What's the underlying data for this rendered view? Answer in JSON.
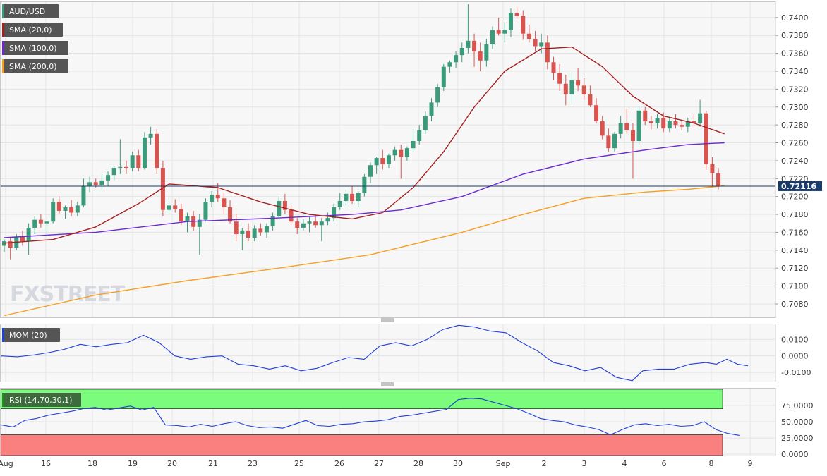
{
  "chart_data": {
    "type": "candlestick",
    "symbol": "AUD/USD",
    "watermark": "FXSTREET",
    "colors": {
      "up": "#3a9a7a",
      "down": "#d9534f",
      "sma20": "#a52020",
      "sma100": "#6a2ad0",
      "sma200": "#f5a020",
      "mom": "#2040d8",
      "rsi": "#2040d8",
      "rsi_overbought_zone": "#7cfc7c",
      "rsi_oversold_zone": "#fa8080",
      "last_price_line": "#1a3a6a"
    },
    "legend": [
      {
        "label": "AUD/USD",
        "color": "#3a9a7a"
      },
      {
        "label": "SMA (20,0)",
        "color": "#a52020"
      },
      {
        "label": "SMA (100,0)",
        "color": "#6a2ad0"
      },
      {
        "label": "SMA (200,0)",
        "color": "#f5a020"
      }
    ],
    "last_price": 0.72116,
    "last_price_label": "0.72116",
    "x_ticks": [
      "Aug",
      "16",
      "18",
      "19",
      "20",
      "21",
      "23",
      "25",
      "26",
      "27",
      "28",
      "30",
      "Sep",
      "2",
      "3",
      "4",
      "6",
      "8",
      "9"
    ],
    "price_axis": {
      "ylim": [
        0.7065,
        0.7418
      ],
      "ticks": [
        0.708,
        0.71,
        0.712,
        0.714,
        0.716,
        0.718,
        0.72,
        0.722,
        0.724,
        0.726,
        0.728,
        0.73,
        0.732,
        0.734,
        0.736,
        0.738,
        0.74
      ],
      "tick_labels": [
        "0.7080",
        "0.7100",
        "0.7120",
        "0.7140",
        "0.7160",
        "0.7180",
        "0.7200",
        "0.7220",
        "0.7240",
        "0.7260",
        "0.7280",
        "0.7300",
        "0.7320",
        "0.7340",
        "0.7360",
        "0.7380",
        "0.7400"
      ]
    },
    "ohlc": [
      [
        0.7145,
        0.7152,
        0.7138,
        0.715
      ],
      [
        0.715,
        0.7155,
        0.713,
        0.7143
      ],
      [
        0.7143,
        0.7158,
        0.714,
        0.7155
      ],
      [
        0.7155,
        0.7162,
        0.7145,
        0.715
      ],
      [
        0.715,
        0.717,
        0.7135,
        0.7165
      ],
      [
        0.7165,
        0.7178,
        0.7158,
        0.7174
      ],
      [
        0.7174,
        0.718,
        0.7165,
        0.717
      ],
      [
        0.717,
        0.7175,
        0.716,
        0.7172
      ],
      [
        0.7172,
        0.7198,
        0.717,
        0.7194
      ],
      [
        0.7194,
        0.72,
        0.718,
        0.7184
      ],
      [
        0.7184,
        0.719,
        0.7175,
        0.7188
      ],
      [
        0.7188,
        0.7196,
        0.7178,
        0.7182
      ],
      [
        0.7182,
        0.7194,
        0.7178,
        0.719
      ],
      [
        0.719,
        0.722,
        0.7188,
        0.7212
      ],
      [
        0.7212,
        0.7222,
        0.7205,
        0.7216
      ],
      [
        0.7216,
        0.722,
        0.721,
        0.7213
      ],
      [
        0.7213,
        0.7225,
        0.7208,
        0.7218
      ],
      [
        0.7218,
        0.7228,
        0.7212,
        0.7224
      ],
      [
        0.7224,
        0.7234,
        0.7218,
        0.7232
      ],
      [
        0.7232,
        0.7264,
        0.7225,
        0.7233
      ],
      [
        0.7233,
        0.724,
        0.7225,
        0.7232
      ],
      [
        0.7232,
        0.725,
        0.7228,
        0.7246
      ],
      [
        0.7246,
        0.7252,
        0.7228,
        0.7232
      ],
      [
        0.7232,
        0.7272,
        0.723,
        0.7266
      ],
      [
        0.7266,
        0.7278,
        0.7258,
        0.727
      ],
      [
        0.727,
        0.7275,
        0.7225,
        0.7232
      ],
      [
        0.7232,
        0.724,
        0.7178,
        0.7185
      ],
      [
        0.7185,
        0.7195,
        0.718,
        0.719
      ],
      [
        0.719,
        0.7197,
        0.7182,
        0.7186
      ],
      [
        0.7186,
        0.7192,
        0.7168,
        0.7172
      ],
      [
        0.7172,
        0.7182,
        0.716,
        0.7178
      ],
      [
        0.7178,
        0.7184,
        0.7162,
        0.7166
      ],
      [
        0.7166,
        0.718,
        0.7135,
        0.7174
      ],
      [
        0.7174,
        0.7198,
        0.7172,
        0.7194
      ],
      [
        0.7194,
        0.7206,
        0.7188,
        0.7202
      ],
      [
        0.7202,
        0.7215,
        0.7194,
        0.7198
      ],
      [
        0.7198,
        0.7205,
        0.718,
        0.7188
      ],
      [
        0.7188,
        0.7196,
        0.717,
        0.7172
      ],
      [
        0.7172,
        0.718,
        0.715,
        0.7158
      ],
      [
        0.7158,
        0.7165,
        0.714,
        0.7162
      ],
      [
        0.7162,
        0.717,
        0.715,
        0.7154
      ],
      [
        0.7154,
        0.7168,
        0.715,
        0.7164
      ],
      [
        0.7164,
        0.717,
        0.7156,
        0.716
      ],
      [
        0.716,
        0.717,
        0.7154,
        0.7167
      ],
      [
        0.7167,
        0.7182,
        0.7162,
        0.7178
      ],
      [
        0.7178,
        0.72,
        0.7175,
        0.7195
      ],
      [
        0.7195,
        0.7203,
        0.718,
        0.7185
      ],
      [
        0.7185,
        0.719,
        0.7168,
        0.7172
      ],
      [
        0.7172,
        0.7176,
        0.7158,
        0.7165
      ],
      [
        0.7165,
        0.7175,
        0.7162,
        0.717
      ],
      [
        0.717,
        0.7178,
        0.716,
        0.7172
      ],
      [
        0.7172,
        0.718,
        0.7165,
        0.7168
      ],
      [
        0.7168,
        0.7176,
        0.715,
        0.7172
      ],
      [
        0.7172,
        0.7182,
        0.7168,
        0.7176
      ],
      [
        0.7176,
        0.7192,
        0.7172,
        0.7188
      ],
      [
        0.7188,
        0.7204,
        0.7185,
        0.7195
      ],
      [
        0.7195,
        0.7208,
        0.719,
        0.7203
      ],
      [
        0.7203,
        0.7212,
        0.7192,
        0.7195
      ],
      [
        0.7195,
        0.7206,
        0.7188,
        0.7204
      ],
      [
        0.7204,
        0.7225,
        0.72,
        0.7222
      ],
      [
        0.7222,
        0.7238,
        0.7215,
        0.7235
      ],
      [
        0.7235,
        0.7244,
        0.7225,
        0.7243
      ],
      [
        0.7243,
        0.7252,
        0.723,
        0.7236
      ],
      [
        0.7236,
        0.7248,
        0.7232,
        0.7246
      ],
      [
        0.7246,
        0.7256,
        0.724,
        0.7252
      ],
      [
        0.7252,
        0.7258,
        0.722,
        0.7244
      ],
      [
        0.7244,
        0.7256,
        0.724,
        0.7254
      ],
      [
        0.7254,
        0.7275,
        0.725,
        0.7262
      ],
      [
        0.7262,
        0.728,
        0.7258,
        0.7274
      ],
      [
        0.7274,
        0.7295,
        0.727,
        0.729
      ],
      [
        0.729,
        0.731,
        0.7284,
        0.7305
      ],
      [
        0.7305,
        0.7326,
        0.73,
        0.7322
      ],
      [
        0.7322,
        0.7348,
        0.7318,
        0.7345
      ],
      [
        0.7345,
        0.7352,
        0.7338,
        0.735
      ],
      [
        0.735,
        0.7362,
        0.7344,
        0.7358
      ],
      [
        0.7358,
        0.7372,
        0.735,
        0.7366
      ],
      [
        0.7366,
        0.7415,
        0.736,
        0.7374
      ],
      [
        0.7374,
        0.7382,
        0.7345,
        0.7362
      ],
      [
        0.7362,
        0.7372,
        0.734,
        0.7352
      ],
      [
        0.7352,
        0.7376,
        0.7345,
        0.737
      ],
      [
        0.737,
        0.739,
        0.7365,
        0.7386
      ],
      [
        0.7386,
        0.74,
        0.738,
        0.7382
      ],
      [
        0.7382,
        0.7395,
        0.7372,
        0.7386
      ],
      [
        0.7386,
        0.741,
        0.7378,
        0.7405
      ],
      [
        0.7405,
        0.7412,
        0.7398,
        0.7402
      ],
      [
        0.7402,
        0.7408,
        0.7375,
        0.7382
      ],
      [
        0.7382,
        0.7392,
        0.7372,
        0.7376
      ],
      [
        0.7376,
        0.7385,
        0.7362,
        0.7368
      ],
      [
        0.7368,
        0.7382,
        0.736,
        0.7372
      ],
      [
        0.7372,
        0.738,
        0.7342,
        0.735
      ],
      [
        0.735,
        0.7356,
        0.733,
        0.7338
      ],
      [
        0.7338,
        0.7348,
        0.7318,
        0.7326
      ],
      [
        0.7326,
        0.7336,
        0.7302,
        0.7314
      ],
      [
        0.7314,
        0.7338,
        0.7305,
        0.733
      ],
      [
        0.733,
        0.7344,
        0.7318,
        0.7324
      ],
      [
        0.7324,
        0.7332,
        0.7308,
        0.7314
      ],
      [
        0.7314,
        0.7324,
        0.73,
        0.7302
      ],
      [
        0.7302,
        0.731,
        0.7282,
        0.7284
      ],
      [
        0.7284,
        0.729,
        0.7264,
        0.7268
      ],
      [
        0.7268,
        0.7276,
        0.725,
        0.7254
      ],
      [
        0.7254,
        0.7272,
        0.725,
        0.727
      ],
      [
        0.727,
        0.729,
        0.7265,
        0.7282
      ],
      [
        0.7282,
        0.7298,
        0.727,
        0.7274
      ],
      [
        0.7274,
        0.7282,
        0.722,
        0.7262
      ],
      [
        0.7262,
        0.73,
        0.7258,
        0.7296
      ],
      [
        0.7296,
        0.73,
        0.728,
        0.7284
      ],
      [
        0.7284,
        0.729,
        0.7275,
        0.7282
      ],
      [
        0.7282,
        0.7292,
        0.7276,
        0.7288
      ],
      [
        0.7288,
        0.7294,
        0.7272,
        0.7276
      ],
      [
        0.7276,
        0.7288,
        0.7272,
        0.7284
      ],
      [
        0.7284,
        0.7292,
        0.7276,
        0.728
      ],
      [
        0.728,
        0.7286,
        0.7274,
        0.7278
      ],
      [
        0.7278,
        0.7288,
        0.7272,
        0.7284
      ],
      [
        0.7284,
        0.7292,
        0.7276,
        0.7282
      ],
      [
        0.7282,
        0.7308,
        0.7278,
        0.7293
      ],
      [
        0.7293,
        0.7296,
        0.723,
        0.7236
      ],
      [
        0.7236,
        0.7244,
        0.721,
        0.7226
      ],
      [
        0.7226,
        0.7232,
        0.7208,
        0.7212
      ]
    ],
    "sma20": [
      [
        0,
        0.7148
      ],
      [
        8,
        0.7152
      ],
      [
        15,
        0.7166
      ],
      [
        22,
        0.7192
      ],
      [
        27,
        0.7214
      ],
      [
        35,
        0.721
      ],
      [
        42,
        0.7194
      ],
      [
        50,
        0.718
      ],
      [
        57,
        0.7175
      ],
      [
        62,
        0.7182
      ],
      [
        67,
        0.721
      ],
      [
        72,
        0.725
      ],
      [
        77,
        0.73
      ],
      [
        82,
        0.734
      ],
      [
        88,
        0.7365
      ],
      [
        93,
        0.7367
      ],
      [
        98,
        0.7345
      ],
      [
        103,
        0.7312
      ],
      [
        108,
        0.729
      ],
      [
        113,
        0.7282
      ],
      [
        118,
        0.727
      ]
    ],
    "sma100": [
      [
        0,
        0.7154
      ],
      [
        15,
        0.716
      ],
      [
        30,
        0.7172
      ],
      [
        45,
        0.7176
      ],
      [
        57,
        0.718
      ],
      [
        65,
        0.7185
      ],
      [
        75,
        0.72
      ],
      [
        85,
        0.7225
      ],
      [
        95,
        0.7242
      ],
      [
        105,
        0.7252
      ],
      [
        112,
        0.7258
      ],
      [
        118,
        0.726
      ]
    ],
    "sma200": [
      [
        0,
        0.7067
      ],
      [
        15,
        0.709
      ],
      [
        30,
        0.7106
      ],
      [
        45,
        0.712
      ],
      [
        60,
        0.7135
      ],
      [
        75,
        0.716
      ],
      [
        85,
        0.718
      ],
      [
        95,
        0.7198
      ],
      [
        105,
        0.7205
      ],
      [
        112,
        0.7208
      ],
      [
        118,
        0.7212
      ]
    ],
    "mom": {
      "label": "MOM (20)",
      "ylim": [
        -0.0155,
        0.0195
      ],
      "ticks": [
        0.01,
        0.0,
        -0.01
      ],
      "tick_labels": [
        "0.0100",
        "0.0000",
        "-0.0100"
      ],
      "points": [
        [
          0,
          0.0
        ],
        [
          3,
          -0.0005
        ],
        [
          6,
          0.0005
        ],
        [
          9,
          0.002
        ],
        [
          12,
          0.004
        ],
        [
          15,
          0.007
        ],
        [
          18,
          0.0055
        ],
        [
          21,
          0.007
        ],
        [
          24,
          0.008
        ],
        [
          27,
          0.0125
        ],
        [
          30,
          0.008
        ],
        [
          33,
          0.0
        ],
        [
          36,
          -0.002
        ],
        [
          39,
          -0.0005
        ],
        [
          42,
          0.0
        ],
        [
          45,
          -0.005
        ],
        [
          48,
          -0.006
        ],
        [
          51,
          -0.008
        ],
        [
          54,
          -0.006
        ],
        [
          57,
          -0.009
        ],
        [
          60,
          -0.0075
        ],
        [
          63,
          -0.004
        ],
        [
          66,
          -0.001
        ],
        [
          69,
          -0.002
        ],
        [
          72,
          0.006
        ],
        [
          75,
          0.008
        ],
        [
          78,
          0.006
        ],
        [
          81,
          0.01
        ],
        [
          84,
          0.016
        ],
        [
          87,
          0.0185
        ],
        [
          90,
          0.0175
        ],
        [
          93,
          0.015
        ],
        [
          96,
          0.014
        ],
        [
          99,
          0.008
        ],
        [
          102,
          0.003
        ],
        [
          105,
          -0.004
        ],
        [
          108,
          -0.006
        ],
        [
          111,
          -0.009
        ],
        [
          114,
          -0.007
        ],
        [
          117,
          -0.013
        ],
        [
          120,
          -0.015
        ],
        [
          122,
          -0.009
        ],
        [
          125,
          -0.008
        ],
        [
          128,
          -0.008
        ],
        [
          131,
          -0.005
        ],
        [
          134,
          -0.004
        ],
        [
          136,
          -0.005
        ],
        [
          138,
          -0.002
        ],
        [
          140,
          -0.005
        ],
        [
          142,
          -0.006
        ]
      ]
    },
    "rsi": {
      "label": "RSI (14,70,30,1)",
      "ylim": [
        -2,
        102
      ],
      "overbought": 70,
      "oversold": 30,
      "ticks": [
        75,
        50,
        25,
        0
      ],
      "tick_labels": [
        "75.0000",
        "50.0000",
        "25.0000",
        "0.0000"
      ],
      "points": [
        [
          0,
          45
        ],
        [
          2,
          42
        ],
        [
          4,
          52
        ],
        [
          6,
          55
        ],
        [
          8,
          60
        ],
        [
          10,
          63
        ],
        [
          12,
          66
        ],
        [
          14,
          70
        ],
        [
          16,
          72
        ],
        [
          18,
          68
        ],
        [
          20,
          71
        ],
        [
          22,
          74
        ],
        [
          24,
          68
        ],
        [
          26,
          72
        ],
        [
          28,
          45
        ],
        [
          30,
          44
        ],
        [
          32,
          42
        ],
        [
          34,
          46
        ],
        [
          36,
          43
        ],
        [
          38,
          47
        ],
        [
          40,
          50
        ],
        [
          42,
          44
        ],
        [
          44,
          41
        ],
        [
          46,
          42
        ],
        [
          48,
          40
        ],
        [
          50,
          46
        ],
        [
          52,
          52
        ],
        [
          54,
          44
        ],
        [
          56,
          43
        ],
        [
          58,
          46
        ],
        [
          60,
          47
        ],
        [
          62,
          50
        ],
        [
          64,
          51
        ],
        [
          66,
          53
        ],
        [
          68,
          58
        ],
        [
          70,
          60
        ],
        [
          72,
          63
        ],
        [
          74,
          66
        ],
        [
          76,
          69
        ],
        [
          78,
          84
        ],
        [
          80,
          86
        ],
        [
          82,
          85
        ],
        [
          84,
          80
        ],
        [
          86,
          75
        ],
        [
          88,
          70
        ],
        [
          90,
          63
        ],
        [
          92,
          55
        ],
        [
          94,
          52
        ],
        [
          96,
          50
        ],
        [
          98,
          45
        ],
        [
          100,
          42
        ],
        [
          102,
          38
        ],
        [
          104,
          30
        ],
        [
          106,
          38
        ],
        [
          108,
          45
        ],
        [
          110,
          47
        ],
        [
          112,
          44
        ],
        [
          114,
          46
        ],
        [
          116,
          43
        ],
        [
          118,
          44
        ],
        [
          120,
          50
        ],
        [
          122,
          38
        ],
        [
          124,
          32
        ],
        [
          126,
          29
        ]
      ]
    }
  }
}
